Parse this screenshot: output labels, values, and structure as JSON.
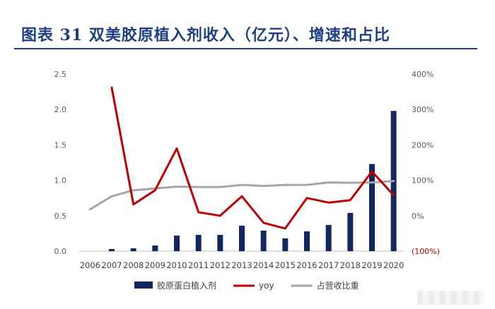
{
  "header": {
    "title": "图表 31   双美胶原植入剂收入（亿元）、增速和占比"
  },
  "chart_data": {
    "type": "bar",
    "categories": [
      "2006",
      "2007",
      "2008",
      "2009",
      "2010",
      "2011",
      "2012",
      "2013",
      "2014",
      "2015",
      "2016",
      "2017",
      "2018",
      "2019",
      "2020"
    ],
    "series": [
      {
        "name": "胶原蛋白植入剂",
        "type": "bar",
        "axis": "left",
        "color": "#13275e",
        "values": [
          0.0,
          0.03,
          0.04,
          0.08,
          0.22,
          0.23,
          0.23,
          0.36,
          0.29,
          0.18,
          0.28,
          0.37,
          0.54,
          1.23,
          1.98
        ]
      },
      {
        "name": "yoy",
        "type": "line",
        "axis": "right",
        "color": "#c00000",
        "values": [
          null,
          3.62,
          0.32,
          0.72,
          1.9,
          0.1,
          0.0,
          0.55,
          -0.2,
          -0.36,
          0.5,
          0.37,
          0.44,
          1.25,
          0.58
        ]
      },
      {
        "name": "占营收比重",
        "type": "line",
        "axis": "right",
        "color": "#a6a6a6",
        "values": [
          0.18,
          0.55,
          0.72,
          0.77,
          0.82,
          0.81,
          0.81,
          0.87,
          0.84,
          0.87,
          0.87,
          0.94,
          0.93,
          0.94,
          0.98
        ]
      }
    ],
    "ylim": [
      0,
      2.5
    ],
    "yticks": [
      "0.0",
      "0.5",
      "1.0",
      "1.5",
      "2.0",
      "2.5"
    ],
    "y2lim": [
      -1,
      4
    ],
    "y2ticks": [
      "(100%)",
      "0%",
      "100%",
      "200%",
      "300%",
      "400%"
    ],
    "y2_negative_color": "#c00000",
    "grid": false,
    "legend": "bottom"
  }
}
